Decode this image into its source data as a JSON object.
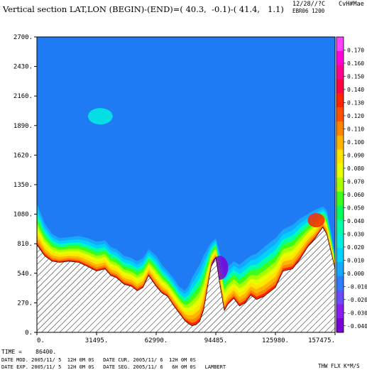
{
  "header": {
    "title": "Vertical section LAT,LON (BEGIN)-(END)=( 40.3,  -0.1)-( 41.4,   1.1)",
    "stamp_line1": "12/28//?C",
    "stamp_line1b": "CvH#Mae",
    "stamp_line2": "EBR06 1200"
  },
  "footer": {
    "time": "TIME =    86400.",
    "line1": "DATE MOD. 2005/11/ 5  12H 0M 0S   DATE CUR. 2005/11/ 6  12H 0M 0S",
    "line2": "DATE EXP. 2005/11/ 5  12H 0M 0S   DATE SEG. 2005/11/ 6   6H 0M 0S   LAMBERT",
    "field": "THW FLX K*M/S"
  },
  "colors": {
    "background_field": "#1f7bf4",
    "terrain_hatch": "#000000",
    "colorbar": [
      "#7a00d6",
      "#8a1ef0",
      "#6a4cff",
      "#2f7dff",
      "#14a8ff",
      "#00d2ff",
      "#00f0e0",
      "#00ffa8",
      "#00ff5a",
      "#3cff1c",
      "#a8ff00",
      "#e8ff00",
      "#ffe400",
      "#ffb400",
      "#ff8200",
      "#ff5000",
      "#ff2400",
      "#ff0040",
      "#ff0090",
      "#ff00d8",
      "#ff40ff"
    ]
  },
  "chart_data": {
    "type": "heatmap",
    "title": "Vertical section LAT,LON (BEGIN)-(END)=( 40.3,  -0.1)-( 41.4,   1.1)",
    "xlabel": "",
    "ylabel": "",
    "xlim": [
      0,
      157475
    ],
    "ylim": [
      0,
      2700
    ],
    "x_ticks": [
      "0.",
      "31495.",
      "62990.",
      "94485.",
      "125980.",
      "157475."
    ],
    "y_ticks": [
      "0.",
      "270.",
      "540.",
      "810.",
      "1080.",
      "1350.",
      "1620.",
      "1890.",
      "2160.",
      "2430.",
      "2700."
    ],
    "colorbar_ticks": [
      "0.170",
      "0.160",
      "0.150",
      "0.140",
      "0.130",
      "0.120",
      "0.110",
      "0.100",
      "0.090",
      "0.080",
      "0.070",
      "0.060",
      "0.050",
      "0.040",
      "0.030",
      "0.020",
      "0.010",
      "0.000",
      "-0.010",
      "-0.020",
      "-0.030",
      "-0.040"
    ],
    "colorbar_range": [
      -0.045,
      0.18
    ],
    "background_value": 0.0,
    "field": "THW FLX K*M/S",
    "terrain": {
      "x": [
        0,
        4000,
        8000,
        12000,
        17000,
        22000,
        27000,
        31495,
        36000,
        39000,
        42000,
        46000,
        50000,
        53000,
        56000,
        59000,
        62990,
        66000,
        69000,
        72000,
        75000,
        78000,
        80000,
        82000,
        84000,
        86000,
        88000,
        90000,
        92000,
        94485,
        97000,
        99000,
        101000,
        104000,
        107000,
        110000,
        113000,
        116000,
        120000,
        125980,
        130000,
        135000,
        139000,
        143000,
        147000,
        151000,
        153000,
        155000,
        157475
      ],
      "y": [
        800,
        700,
        650,
        640,
        650,
        640,
        600,
        560,
        580,
        520,
        500,
        440,
        420,
        380,
        410,
        520,
        420,
        360,
        330,
        250,
        180,
        110,
        80,
        60,
        70,
        100,
        200,
        400,
        600,
        680,
        400,
        200,
        260,
        310,
        240,
        270,
        340,
        300,
        330,
        410,
        560,
        580,
        670,
        780,
        860,
        960,
        900,
        760,
        580
      ]
    },
    "layer_top": {
      "x": [
        0,
        4000,
        8000,
        12000,
        17000,
        22000,
        27000,
        31495,
        36000,
        39000,
        42000,
        46000,
        50000,
        53000,
        56000,
        59000,
        62990,
        66000,
        69000,
        72000,
        75000,
        78000,
        80000,
        82000,
        84000,
        86000,
        88000,
        90000,
        92000,
        94485,
        97000,
        99000,
        101000,
        104000,
        107000,
        110000,
        113000,
        116000,
        120000,
        125980,
        130000,
        135000,
        139000,
        143000,
        147000,
        151000,
        153000,
        155000,
        157475
      ],
      "y": [
        1180,
        1000,
        900,
        860,
        870,
        880,
        860,
        830,
        840,
        780,
        760,
        700,
        680,
        650,
        680,
        760,
        700,
        620,
        560,
        500,
        420,
        380,
        420,
        500,
        560,
        620,
        700,
        760,
        820,
        860,
        700,
        560,
        600,
        650,
        620,
        660,
        700,
        720,
        780,
        860,
        940,
        980,
        1040,
        1080,
        1120,
        1150,
        1120,
        950,
        700
      ]
    },
    "features": [
      {
        "label": "high-level plume",
        "x": [
          27000,
          40000
        ],
        "y": [
          1900,
          2050
        ]
      },
      {
        "label": "negative core",
        "x": [
          92000,
          101000
        ],
        "y": [
          480,
          700
        ]
      },
      {
        "label": "positive core",
        "x": [
          143000,
          152000
        ],
        "y": [
          960,
          1090
        ]
      }
    ]
  }
}
